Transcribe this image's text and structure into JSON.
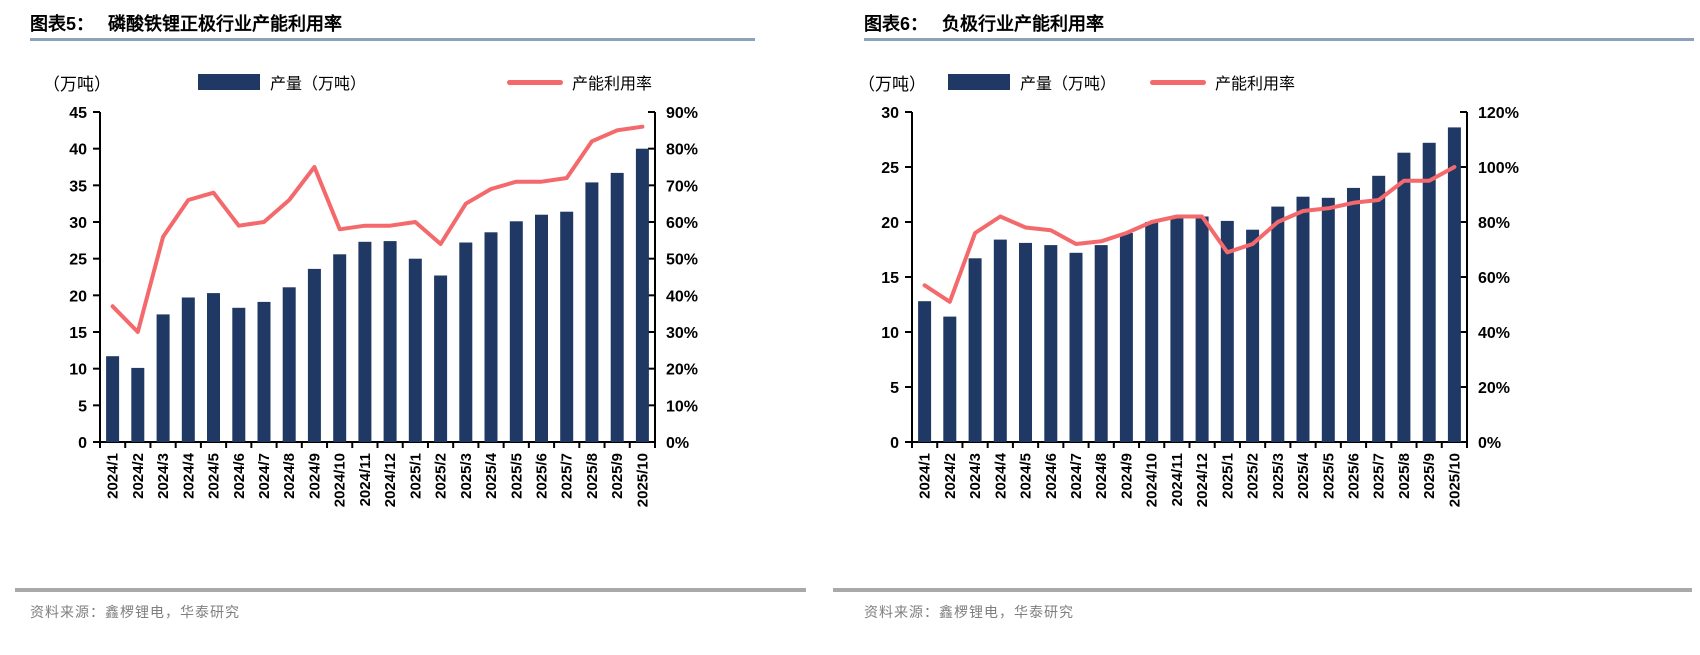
{
  "colors": {
    "bar": "#1f3864",
    "line": "#f4696b",
    "title_rule": "#8ca2bb",
    "source_rule": "#a9a9a9",
    "source_text": "#7f7f7f",
    "axis": "#000000",
    "background": "#ffffff"
  },
  "panels": [
    {
      "figure_label": "图表5：",
      "title": "磷酸铁锂正极行业产能利用率",
      "unit_label": "（万吨）",
      "source": "资料来源：鑫椤锂电，华泰研究"
    },
    {
      "figure_label": "图表6：",
      "title": "负极行业产能利用率",
      "unit_label": "（万吨）",
      "source": "资料来源：鑫椤锂电，华泰研究"
    }
  ],
  "chart_data": [
    {
      "type": "bar+line",
      "title": "图表5：磷酸铁锂正极行业产能利用率",
      "categories": [
        "2024/1",
        "2024/2",
        "2024/3",
        "2024/4",
        "2024/5",
        "2024/6",
        "2024/7",
        "2024/8",
        "2024/9",
        "2024/10",
        "2024/11",
        "2024/12",
        "2025/1",
        "2025/2",
        "2025/3",
        "2025/4",
        "2025/5",
        "2025/6",
        "2025/7",
        "2025/8",
        "2025/9",
        "2025/10"
      ],
      "series": [
        {
          "name": "产量（万吨）",
          "type": "bar",
          "axis": "left",
          "unit": "万吨",
          "values": [
            11.7,
            10.1,
            17.4,
            19.7,
            20.3,
            18.3,
            19.1,
            21.1,
            23.6,
            25.6,
            27.3,
            27.4,
            25.0,
            22.7,
            27.2,
            28.6,
            30.1,
            31.0,
            31.4,
            35.4,
            36.7,
            40.0
          ]
        },
        {
          "name": "产能利用率",
          "type": "line",
          "axis": "right",
          "unit": "%",
          "values": [
            37,
            30,
            56,
            66,
            68,
            59,
            60,
            66,
            75,
            58,
            59,
            59,
            60,
            54,
            65,
            69,
            71,
            71,
            72,
            82,
            85,
            86
          ]
        }
      ],
      "left_axis": {
        "label": "（万吨）",
        "min": 0,
        "max": 45,
        "step": 5
      },
      "right_axis": {
        "min": 0,
        "max": 90,
        "step": 10,
        "format": "percent"
      },
      "grid": false,
      "legend_position": "top",
      "layout": {
        "px0": 100,
        "px1": 655
      }
    },
    {
      "type": "bar+line",
      "title": "图表6：负极行业产能利用率",
      "categories": [
        "2024/1",
        "2024/2",
        "2024/3",
        "2024/4",
        "2024/5",
        "2024/6",
        "2024/7",
        "2024/8",
        "2024/9",
        "2024/10",
        "2024/11",
        "2024/12",
        "2025/1",
        "2025/2",
        "2025/3",
        "2025/4",
        "2025/5",
        "2025/6",
        "2025/7",
        "2025/8",
        "2025/9",
        "2025/10"
      ],
      "series": [
        {
          "name": "产量（万吨）",
          "type": "bar",
          "axis": "left",
          "unit": "万吨",
          "values": [
            12.8,
            11.4,
            16.7,
            18.4,
            18.1,
            17.9,
            17.2,
            17.9,
            19.0,
            20.0,
            20.4,
            20.5,
            20.1,
            19.3,
            21.4,
            22.3,
            22.2,
            23.1,
            24.2,
            26.3,
            27.2,
            28.6
          ]
        },
        {
          "name": "产能利用率",
          "type": "line",
          "axis": "right",
          "unit": "%",
          "values": [
            57,
            51,
            76,
            82,
            78,
            77,
            72,
            73,
            76,
            80,
            82,
            82,
            69,
            72,
            80,
            84,
            85,
            87,
            88,
            95,
            95,
            100
          ]
        }
      ],
      "left_axis": {
        "label": "（万吨）",
        "min": 0,
        "max": 30,
        "step": 5
      },
      "right_axis": {
        "min": 0,
        "max": 120,
        "step": 20,
        "format": "percent"
      },
      "grid": false,
      "legend_position": "top",
      "layout": {
        "px0": 62,
        "px1": 617
      }
    }
  ]
}
